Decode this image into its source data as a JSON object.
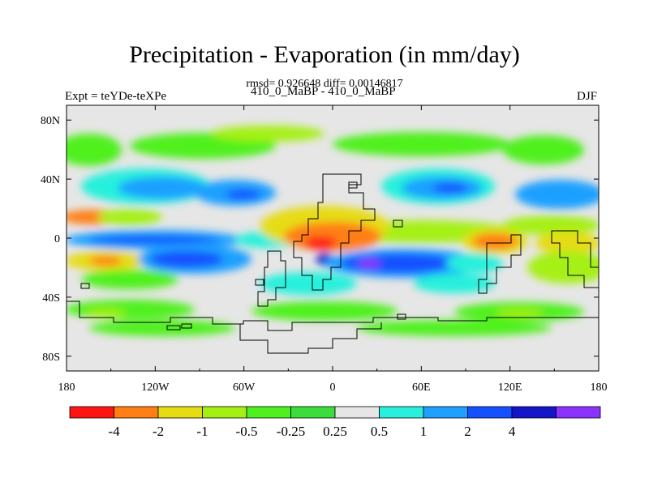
{
  "chart_data": {
    "type": "heatmap",
    "title": "Precipitation - Evaporation (in mm/day)",
    "subtitle": "rmsd= 0.926648  diff= 0.00146817",
    "left_label": "Expt = teYDe-teXPe",
    "center_label": "410_0_MaBP - 410_0_MaBP",
    "right_label": "DJF",
    "x_ticks": [
      "180",
      "120W",
      "60W",
      "0",
      "60E",
      "120E",
      "180"
    ],
    "y_ticks": [
      "80N",
      "40N",
      "0",
      "40S",
      "80S"
    ],
    "xlim": [
      -180,
      180
    ],
    "ylim": [
      -90,
      90
    ],
    "colorbar": {
      "labels": [
        "-4",
        "-2",
        "-1",
        "-0.5",
        "-0.25",
        "0.25",
        "0.5",
        "1",
        "2",
        "4"
      ],
      "colors": [
        "#ff1414",
        "#ff7f14",
        "#e6dc14",
        "#a5f014",
        "#50f01e",
        "#3cdc3c",
        "#e6e6e6",
        "#28f0dc",
        "#1ea0ff",
        "#1450ff",
        "#1414c8",
        "#8c32ff"
      ]
    },
    "field_regions": [
      {
        "name": "north-high-lat",
        "lon": [
          -180,
          180
        ],
        "lat": [
          55,
          72
        ],
        "class": "-0.25..0.25"
      },
      {
        "name": "nh-midlat-pacific",
        "lon": [
          -170,
          -80
        ],
        "lat": [
          20,
          45
        ],
        "class": "1..2"
      },
      {
        "name": "nh-midlat-atlantic",
        "lon": [
          20,
          80
        ],
        "lat": [
          20,
          45
        ],
        "class": "1..2"
      },
      {
        "name": "equatorial-pacific",
        "lon": [
          -180,
          -30
        ],
        "lat": [
          -10,
          8
        ],
        "class": "1..2"
      },
      {
        "name": "tropical-africa",
        "lon": [
          -20,
          40
        ],
        "lat": [
          -5,
          15
        ],
        "class": "-4..-2"
      },
      {
        "name": "sh-subtropics",
        "lon": [
          -180,
          -30
        ],
        "lat": [
          -35,
          -15
        ],
        "class": "1..2"
      },
      {
        "name": "indian-ocean",
        "lon": [
          30,
          100
        ],
        "lat": [
          -25,
          -5
        ],
        "class": "1..2"
      },
      {
        "name": "west-pacific-dry",
        "lon": [
          90,
          120
        ],
        "lat": [
          -10,
          5
        ],
        "class": "-4..-2"
      },
      {
        "name": "southern-ocean",
        "lon": [
          -180,
          180
        ],
        "lat": [
          -60,
          -45
        ],
        "class": "-0.5..-0.25"
      },
      {
        "name": "antarctica",
        "lon": [
          -180,
          180
        ],
        "lat": [
          -90,
          -65
        ],
        "class": "-0.25..0.25"
      }
    ]
  }
}
